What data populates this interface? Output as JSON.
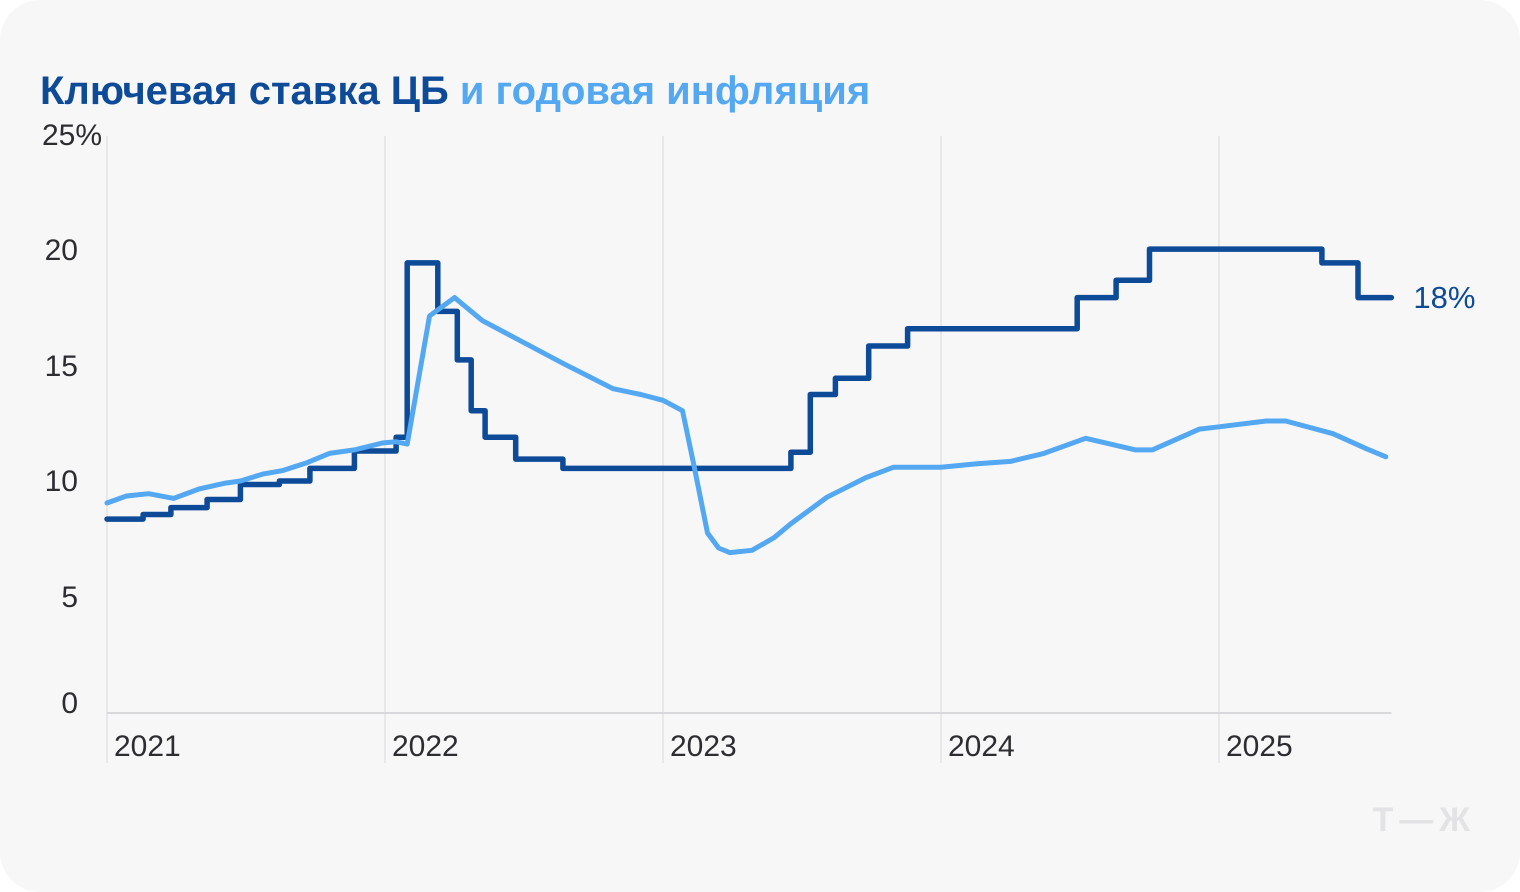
{
  "title": {
    "part1": "Ключевая ставка ЦБ",
    "part2": "и годовая инфляция"
  },
  "logo": {
    "text": "Т—Ж"
  },
  "colors": {
    "card_bg": "#f7f7f8",
    "page_bg": "#ffffff",
    "key_rate": "#0d4a97",
    "inflation": "#54a8f2",
    "grid": "#e8e8eb",
    "axis": "#d9d9dd",
    "tick_text": "#2d2d31",
    "logo": "#e3e3e5"
  },
  "chart_data": {
    "type": "line",
    "title": "Ключевая ставка ЦБ и годовая инфляция",
    "xlabel": "",
    "ylabel": "%",
    "x_range": [
      2021,
      2025.62
    ],
    "ylim": [
      0,
      25
    ],
    "y_ticks": [
      0,
      5,
      10,
      15,
      20,
      25
    ],
    "y_tick_labels": [
      "0",
      "5",
      "10",
      "15",
      "20",
      "25%"
    ],
    "x_ticks": [
      2021,
      2022,
      2023,
      2024,
      2025
    ],
    "x_tick_labels": [
      "2021",
      "2022",
      "2023",
      "2024",
      "2025"
    ],
    "grid": "vertical-only",
    "legend": "encoded-in-title-colors",
    "series": [
      {
        "name": "Ключевая ставка ЦБ",
        "unit": "%",
        "style": "step",
        "end_t": 2025.62,
        "points": [
          [
            2021.0,
            8.4
          ],
          [
            2021.13,
            8.6
          ],
          [
            2021.23,
            8.9
          ],
          [
            2021.36,
            9.25
          ],
          [
            2021.48,
            9.9
          ],
          [
            2021.62,
            10.05
          ],
          [
            2021.73,
            10.6
          ],
          [
            2021.89,
            11.35
          ],
          [
            2022.04,
            11.95
          ],
          [
            2022.08,
            19.5
          ],
          [
            2022.19,
            17.4
          ],
          [
            2022.26,
            15.3
          ],
          [
            2022.31,
            13.1
          ],
          [
            2022.36,
            11.95
          ],
          [
            2022.47,
            11.0
          ],
          [
            2022.64,
            10.6
          ],
          [
            2023.46,
            11.3
          ],
          [
            2023.53,
            13.8
          ],
          [
            2023.62,
            14.5
          ],
          [
            2023.74,
            15.9
          ],
          [
            2023.88,
            16.65
          ],
          [
            2024.49,
            18.0
          ],
          [
            2024.63,
            18.75
          ],
          [
            2024.75,
            20.1
          ],
          [
            2025.37,
            19.5
          ],
          [
            2025.5,
            18.0
          ]
        ]
      },
      {
        "name": "годовая инфляция",
        "unit": "%",
        "style": "smooth",
        "points": [
          [
            2021.0,
            9.1
          ],
          [
            2021.07,
            9.4
          ],
          [
            2021.15,
            9.5
          ],
          [
            2021.24,
            9.3
          ],
          [
            2021.33,
            9.7
          ],
          [
            2021.42,
            9.95
          ],
          [
            2021.48,
            10.05
          ],
          [
            2021.56,
            10.35
          ],
          [
            2021.63,
            10.5
          ],
          [
            2021.72,
            10.85
          ],
          [
            2021.8,
            11.25
          ],
          [
            2021.89,
            11.4
          ],
          [
            2021.99,
            11.7
          ],
          [
            2022.04,
            11.75
          ],
          [
            2022.08,
            11.65
          ],
          [
            2022.16,
            17.2
          ],
          [
            2022.25,
            18.0
          ],
          [
            2022.35,
            17.0
          ],
          [
            2022.46,
            16.3
          ],
          [
            2022.64,
            15.15
          ],
          [
            2022.82,
            14.05
          ],
          [
            2022.92,
            13.8
          ],
          [
            2023.0,
            13.55
          ],
          [
            2023.07,
            13.1
          ],
          [
            2023.11,
            10.8
          ],
          [
            2023.16,
            7.8
          ],
          [
            2023.2,
            7.15
          ],
          [
            2023.24,
            6.95
          ],
          [
            2023.32,
            7.05
          ],
          [
            2023.4,
            7.6
          ],
          [
            2023.46,
            8.2
          ],
          [
            2023.59,
            9.35
          ],
          [
            2023.73,
            10.2
          ],
          [
            2023.83,
            10.65
          ],
          [
            2024.0,
            10.65
          ],
          [
            2024.13,
            10.8
          ],
          [
            2024.25,
            10.9
          ],
          [
            2024.37,
            11.25
          ],
          [
            2024.52,
            11.9
          ],
          [
            2024.7,
            11.4
          ],
          [
            2024.76,
            11.4
          ],
          [
            2024.93,
            12.3
          ],
          [
            2025.0,
            12.4
          ],
          [
            2025.17,
            12.65
          ],
          [
            2025.24,
            12.65
          ],
          [
            2025.41,
            12.1
          ],
          [
            2025.53,
            11.45
          ],
          [
            2025.6,
            11.1
          ]
        ]
      }
    ],
    "annotation": {
      "text": "18%",
      "t": 2025.62,
      "value": 18
    }
  }
}
